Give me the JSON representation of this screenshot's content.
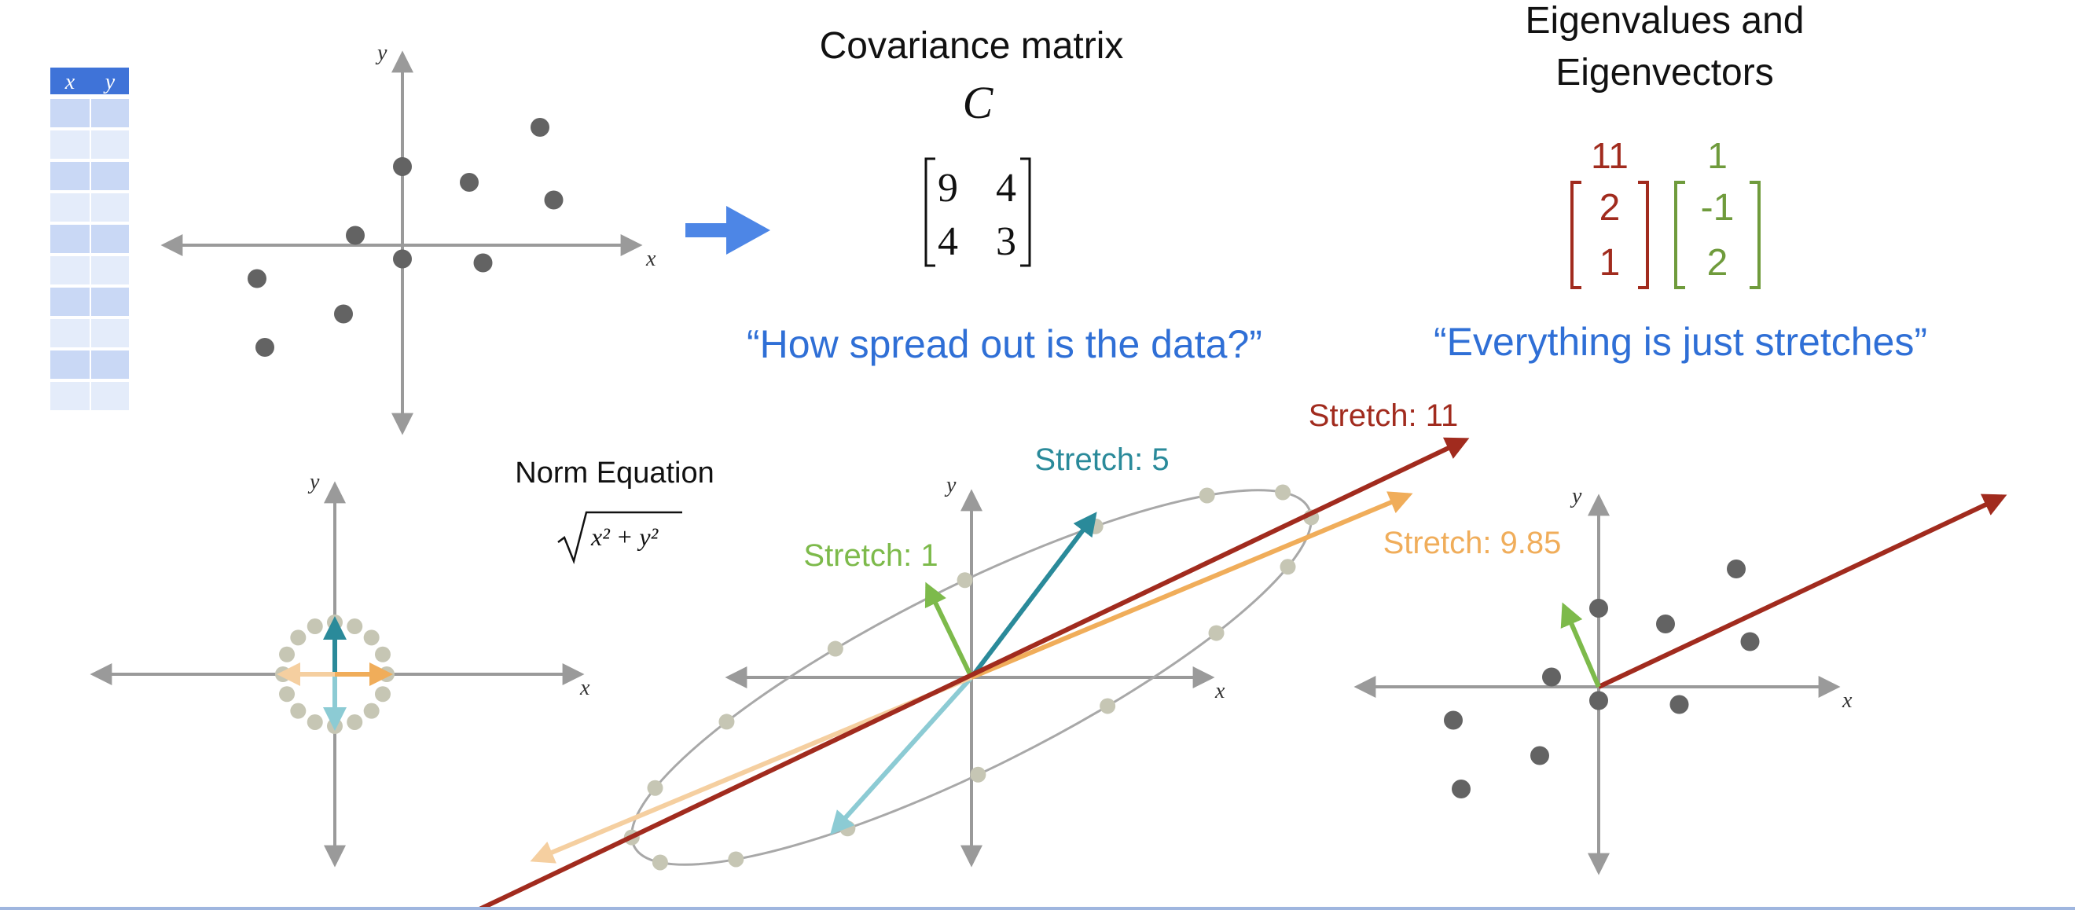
{
  "data_table": {
    "headers": [
      "x",
      "y"
    ],
    "row_count": 10
  },
  "top_axes": {
    "x_label": "x",
    "y_label": "y",
    "points": [
      [
        -3.7,
        -0.85
      ],
      [
        -3.5,
        -2.6
      ],
      [
        -1.5,
        -1.75
      ],
      [
        -1.2,
        0.25
      ],
      [
        0,
        2.0
      ],
      [
        0,
        -0.35
      ],
      [
        1.7,
        1.6
      ],
      [
        2.05,
        -0.45
      ],
      [
        3.5,
        3.0
      ],
      [
        3.85,
        1.15
      ]
    ]
  },
  "covariance": {
    "title": "Covariance matrix",
    "symbol": "C",
    "matrix": [
      [
        "9",
        "4"
      ],
      [
        "4",
        "3"
      ]
    ],
    "quote": "“How spread out is the data?”"
  },
  "eigen": {
    "title_line1": "Eigenvalues and",
    "title_line2": "Eigenvectors",
    "values": [
      "11",
      "1"
    ],
    "vector1": [
      "2",
      "1"
    ],
    "vector2": [
      "-1",
      "2"
    ],
    "quote": "“Everything is just stretches”"
  },
  "norm": {
    "title": "Norm Equation",
    "formula": "x² + y²"
  },
  "stretch_labels": {
    "s11": "Stretch: 11",
    "s5": "Stretch: 5",
    "s1": "Stretch: 1",
    "s985": "Stretch: 9.85"
  },
  "axis_labels": {
    "x": "x",
    "y": "y"
  },
  "colors": {
    "blue_quote": "#2f6fd6",
    "eig_red": "#a12b1e",
    "eig_green": "#6f9b3c",
    "teal": "#2a8a9a",
    "teal_light": "#8ccbd4",
    "orange": "#f0ad5a",
    "orange_light": "#f5cfa0",
    "lime": "#7dba4b",
    "point_gray": "#636363",
    "ellipse_dot": "#c6c6b4",
    "axis_gray": "#9a9a9a",
    "arrow_blue": "#4d86e6"
  }
}
